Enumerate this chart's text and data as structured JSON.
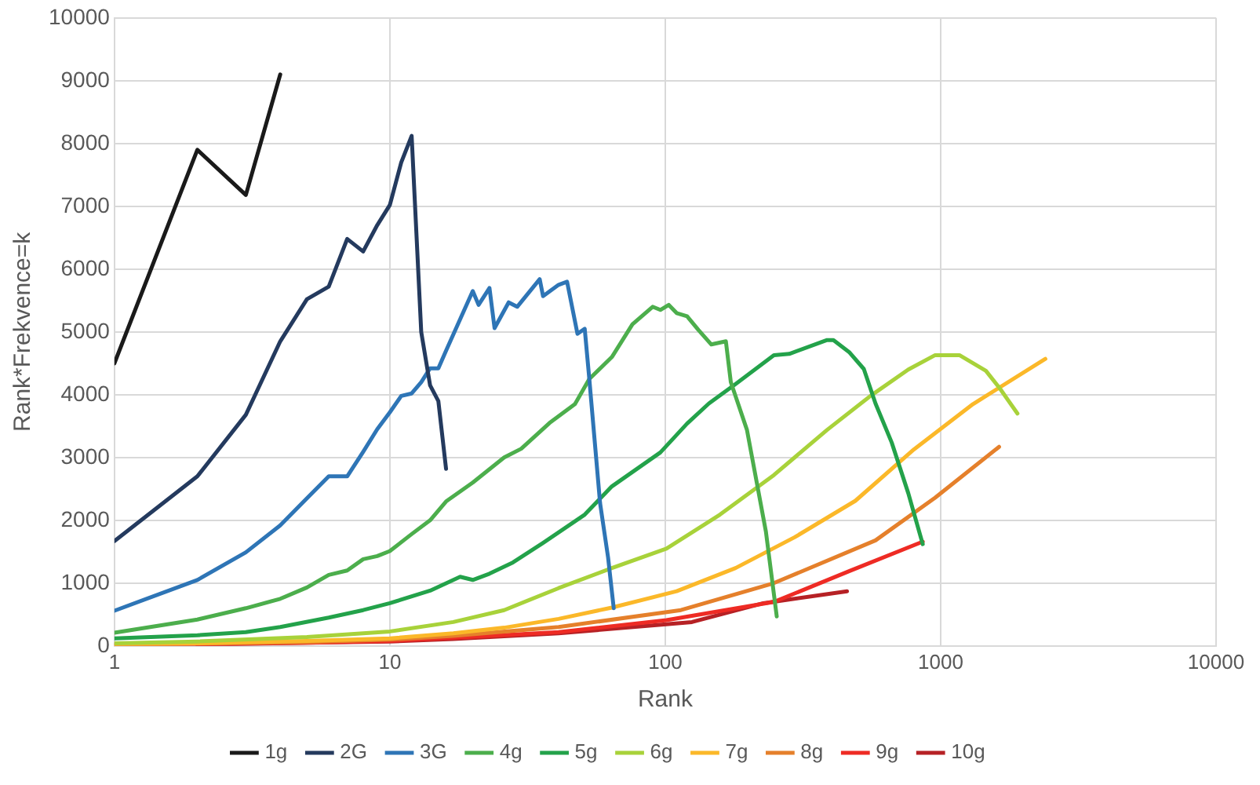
{
  "chart_data": {
    "type": "line",
    "xlabel": "Rank",
    "ylabel": "Rank*Frekvence=k",
    "log": "x",
    "xlim": [
      1,
      10000
    ],
    "xticks": [
      1,
      10,
      100,
      1000,
      10000
    ],
    "ylim": [
      0,
      10000
    ],
    "yticks": [
      0,
      1000,
      2000,
      3000,
      4000,
      5000,
      6000,
      7000,
      8000,
      9000,
      10000
    ],
    "grid": true,
    "legend": "bottom",
    "marker": "none",
    "line_style": "solid",
    "series": [
      {
        "name": "1g",
        "color": "#1a1a1a",
        "x": [
          1,
          2,
          3,
          4
        ],
        "values": [
          4500,
          7900,
          7180,
          9100
        ]
      },
      {
        "name": "2G",
        "color": "#243a5e",
        "x": [
          1,
          2,
          3,
          4,
          5,
          6,
          7,
          8,
          9,
          10,
          11,
          12,
          13,
          14,
          15,
          16
        ],
        "values": [
          1670,
          2700,
          3680,
          4850,
          5520,
          5720,
          6480,
          6280,
          6700,
          7020,
          7700,
          8120,
          5000,
          4150,
          3900,
          2820
        ]
      },
      {
        "name": "3G",
        "color": "#2e75b6",
        "x": [
          1,
          2,
          3,
          4,
          5,
          6,
          7,
          8,
          9,
          10,
          11,
          12,
          13,
          14,
          15,
          16,
          20,
          21,
          23,
          24,
          27,
          29,
          35,
          36,
          41,
          44,
          48,
          51,
          53,
          58,
          62,
          65
        ],
        "values": [
          560,
          1050,
          1490,
          1920,
          2350,
          2700,
          2700,
          3090,
          3450,
          3720,
          3980,
          4020,
          4200,
          4420,
          4420,
          4700,
          5650,
          5430,
          5700,
          5060,
          5470,
          5400,
          5840,
          5570,
          5750,
          5800,
          4970,
          5050,
          4250,
          2270,
          1410,
          600
        ]
      },
      {
        "name": "4g",
        "color": "#4cae4c",
        "x": [
          1,
          2,
          3,
          4,
          5,
          6,
          7,
          8,
          9,
          10,
          12,
          14,
          16,
          20,
          26,
          30,
          38,
          47,
          53,
          64,
          76,
          90,
          96,
          103,
          110,
          120,
          132,
          147,
          166,
          173,
          198,
          232,
          254
        ],
        "values": [
          210,
          420,
          600,
          750,
          930,
          1130,
          1200,
          1380,
          1430,
          1510,
          1780,
          2000,
          2300,
          2600,
          3000,
          3140,
          3550,
          3850,
          4250,
          4600,
          5120,
          5400,
          5350,
          5430,
          5300,
          5250,
          5030,
          4800,
          4850,
          4200,
          3440,
          1820,
          470
        ]
      },
      {
        "name": "5g",
        "color": "#23a24a",
        "x": [
          1,
          2,
          3,
          4,
          6,
          8,
          10,
          14,
          18,
          20,
          23,
          28,
          36,
          51,
          64,
          96,
          120,
          144,
          180,
          248,
          282,
          387,
          408,
          465,
          526,
          580,
          664,
          763,
          861
        ],
        "values": [
          120,
          170,
          220,
          300,
          450,
          570,
          680,
          880,
          1100,
          1050,
          1150,
          1330,
          1640,
          2090,
          2540,
          3080,
          3540,
          3860,
          4170,
          4630,
          4650,
          4870,
          4870,
          4680,
          4410,
          3860,
          3240,
          2430,
          1620
        ]
      },
      {
        "name": "6g",
        "color": "#a8d23a",
        "x": [
          1,
          2,
          5,
          10,
          17,
          26,
          41,
          64,
          101,
          158,
          248,
          387,
          556,
          763,
          955,
          1170,
          1460,
          1640,
          1900
        ],
        "values": [
          40,
          70,
          140,
          230,
          380,
          570,
          920,
          1240,
          1550,
          2090,
          2720,
          3440,
          3980,
          4400,
          4630,
          4630,
          4380,
          4100,
          3700
        ]
      },
      {
        "name": "7g",
        "color": "#fbb829",
        "x": [
          1,
          2,
          5,
          10,
          17,
          26,
          41,
          64,
          110,
          180,
          295,
          490,
          800,
          1310,
          2400
        ],
        "values": [
          30,
          40,
          80,
          120,
          200,
          290,
          430,
          610,
          870,
          1240,
          1730,
          2310,
          3130,
          3850,
          4570
        ]
      },
      {
        "name": "8g",
        "color": "#e5802b",
        "x": [
          1,
          5,
          10,
          17,
          41,
          114,
          248,
          580,
          955,
          1630
        ],
        "values": [
          20,
          60,
          100,
          160,
          300,
          570,
          1000,
          1680,
          2360,
          3170
        ]
      },
      {
        "name": "9g",
        "color": "#ee2b24",
        "x": [
          1,
          5,
          10,
          17,
          41,
          101,
          248,
          465,
          861
        ],
        "values": [
          10,
          50,
          80,
          130,
          220,
          410,
          700,
          1190,
          1660
        ]
      },
      {
        "name": "10g",
        "color": "#b62125",
        "x": [
          2,
          5,
          10,
          17,
          41,
          125,
          227,
          457
        ],
        "values": [
          20,
          50,
          70,
          110,
          200,
          380,
          680,
          870
        ]
      }
    ]
  }
}
